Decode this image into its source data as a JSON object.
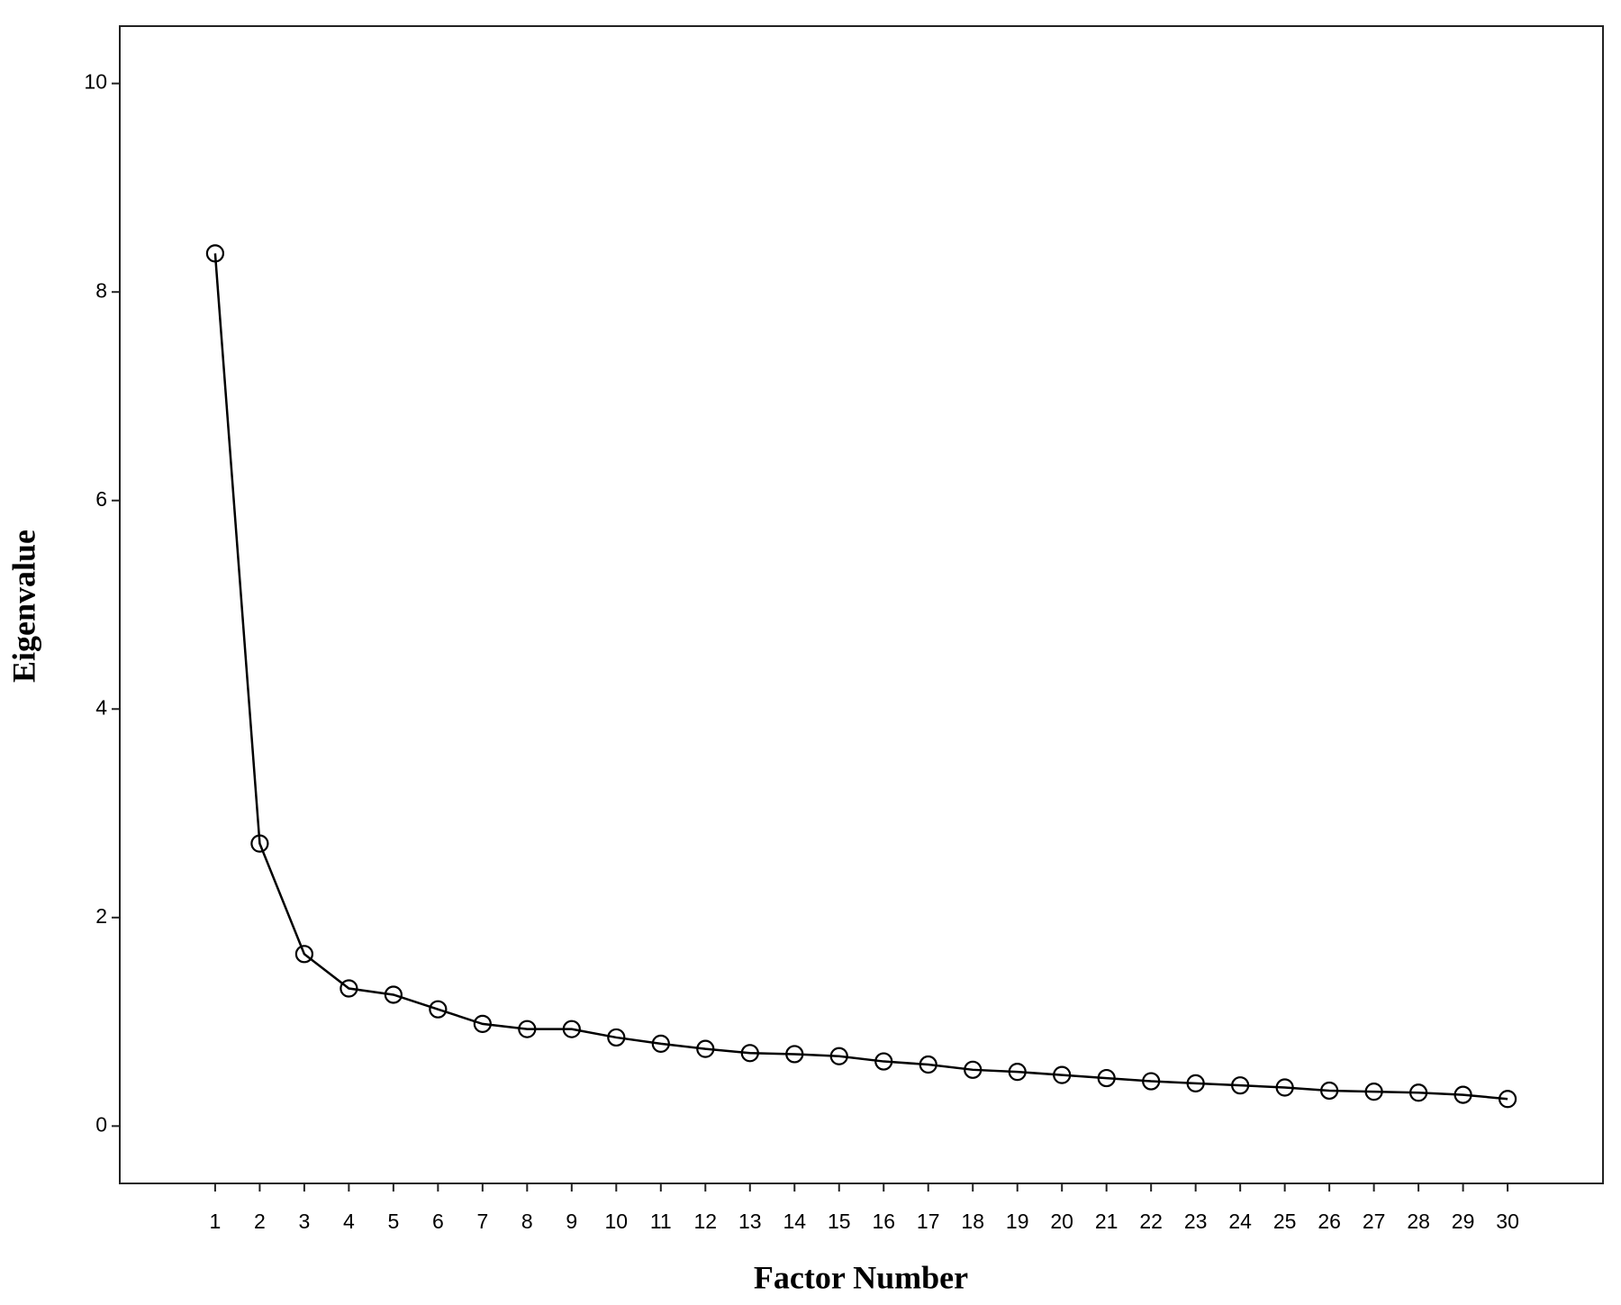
{
  "chart_data": {
    "type": "line",
    "x_label": "Factor Number",
    "y_label": "Eigenvalue",
    "x": [
      1,
      2,
      3,
      4,
      5,
      6,
      7,
      8,
      9,
      10,
      11,
      12,
      13,
      14,
      15,
      16,
      17,
      18,
      19,
      20,
      21,
      22,
      23,
      24,
      25,
      26,
      27,
      28,
      29,
      30
    ],
    "values": [
      8.37,
      2.71,
      1.65,
      1.32,
      1.26,
      1.12,
      0.98,
      0.93,
      0.93,
      0.85,
      0.79,
      0.74,
      0.7,
      0.69,
      0.67,
      0.62,
      0.59,
      0.54,
      0.52,
      0.49,
      0.46,
      0.43,
      0.41,
      0.39,
      0.37,
      0.34,
      0.33,
      0.32,
      0.3,
      0.26
    ],
    "color": "#000000",
    "marker": "circle",
    "xlim": [
      -1.14,
      32.14
    ],
    "ylim": [
      -0.55,
      10.55
    ],
    "xticks": [
      1,
      2,
      3,
      4,
      5,
      6,
      7,
      8,
      9,
      10,
      11,
      12,
      13,
      14,
      15,
      16,
      17,
      18,
      19,
      20,
      21,
      22,
      23,
      24,
      25,
      26,
      27,
      28,
      29,
      30
    ],
    "yticks": [
      0,
      2,
      4,
      6,
      8,
      10
    ]
  }
}
